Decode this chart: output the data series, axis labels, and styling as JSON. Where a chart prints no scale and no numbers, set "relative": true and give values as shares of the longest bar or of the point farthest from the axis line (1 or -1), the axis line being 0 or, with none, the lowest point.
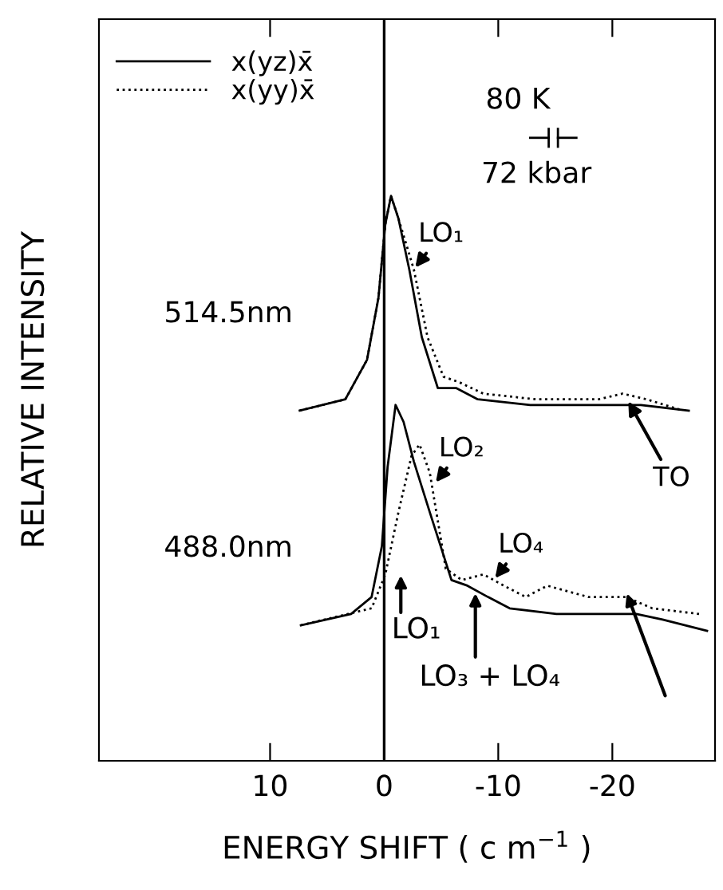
{
  "chart_data": {
    "type": "line",
    "relative": true,
    "xlabel": "ENERGY SHIFT ( c m$^{−1}$ )",
    "ylabel": "RELATIVE INTENSITY",
    "xlim": [
      25,
      -29
    ],
    "xticks": [
      10,
      0,
      -10,
      -20
    ],
    "tick_labels": "x",
    "grid": false,
    "legend": "top left",
    "marker": "none",
    "ref_lines": [
      {
        "axis": "x",
        "value": 0,
        "color": "#000000"
      }
    ],
    "series": [
      {
        "name": "x(yz)x̄",
        "color": "#000000",
        "line_style": "solid",
        "x": [
          7.4,
          3.4,
          1.5,
          0.5,
          -0.1,
          -0.6,
          -1.25,
          -2.2,
          -3.3,
          -4.7,
          -6.3,
          -8.2,
          -12.8,
          -18.8,
          -21.1,
          -22.5,
          -26.7
        ],
        "values": [
          0.62,
          0.64,
          0.71,
          0.82,
          0.95,
          1.0,
          0.96,
          0.87,
          0.75,
          0.66,
          0.66,
          0.64,
          0.63,
          0.63,
          0.63,
          0.63,
          0.62
        ]
      },
      {
        "name": "x(yy)x̄",
        "color": "#000000",
        "line_style": "dotted",
        "x": [
          7.4,
          3.4,
          1.5,
          0.5,
          -0.1,
          -0.6,
          -1.25,
          -2.6,
          -3.8,
          -5.2,
          -6.6,
          -8.7,
          -13.3,
          -18.8,
          -20.9,
          -23.0,
          -26.2
        ],
        "values": [
          0.62,
          0.64,
          0.71,
          0.82,
          0.95,
          1.0,
          0.96,
          0.87,
          0.75,
          0.68,
          0.67,
          0.65,
          0.64,
          0.64,
          0.65,
          0.64,
          0.62
        ]
      },
      {
        "color": "#000000",
        "line_style": "solid",
        "x": [
          7.3,
          2.9,
          1.1,
          0.2,
          -0.3,
          -1.0,
          -1.7,
          -2.6,
          -4.0,
          -5.9,
          -7.3,
          -9.1,
          -11.0,
          -15.1,
          -22.1,
          -24.4,
          -28.3
        ],
        "values": [
          0.24,
          0.26,
          0.29,
          0.38,
          0.52,
          0.63,
          0.6,
          0.53,
          0.44,
          0.32,
          0.31,
          0.29,
          0.27,
          0.26,
          0.26,
          0.25,
          0.23
        ]
      },
      {
        "color": "#000000",
        "line_style": "dotted",
        "x": [
          7.3,
          1.1,
          -0.1,
          -1.25,
          -2.4,
          -3.1,
          -4.0,
          -5.4,
          -6.8,
          -8.7,
          -10.5,
          -12.4,
          -14.3,
          -17.9,
          -21.2,
          -23.5,
          -27.6
        ],
        "values": [
          0.24,
          0.27,
          0.33,
          0.44,
          0.54,
          0.56,
          0.51,
          0.34,
          0.32,
          0.33,
          0.31,
          0.29,
          0.31,
          0.29,
          0.29,
          0.27,
          0.26
        ]
      }
    ],
    "annotations": [
      "80 K",
      "72 kbar",
      "514.5nm",
      "488.0nm",
      {
        "text": "LO₁",
        "x": -2.6,
        "y": 0.87
      },
      {
        "text": "LO₂",
        "x": -4.4,
        "y": 0.49
      },
      {
        "text": "LO₄",
        "x": -9.6,
        "y": 0.32
      },
      "LO₁",
      "LO₃ + LO₄",
      {
        "text": "TO",
        "x": -21.3,
        "y": 0.64
      }
    ]
  }
}
